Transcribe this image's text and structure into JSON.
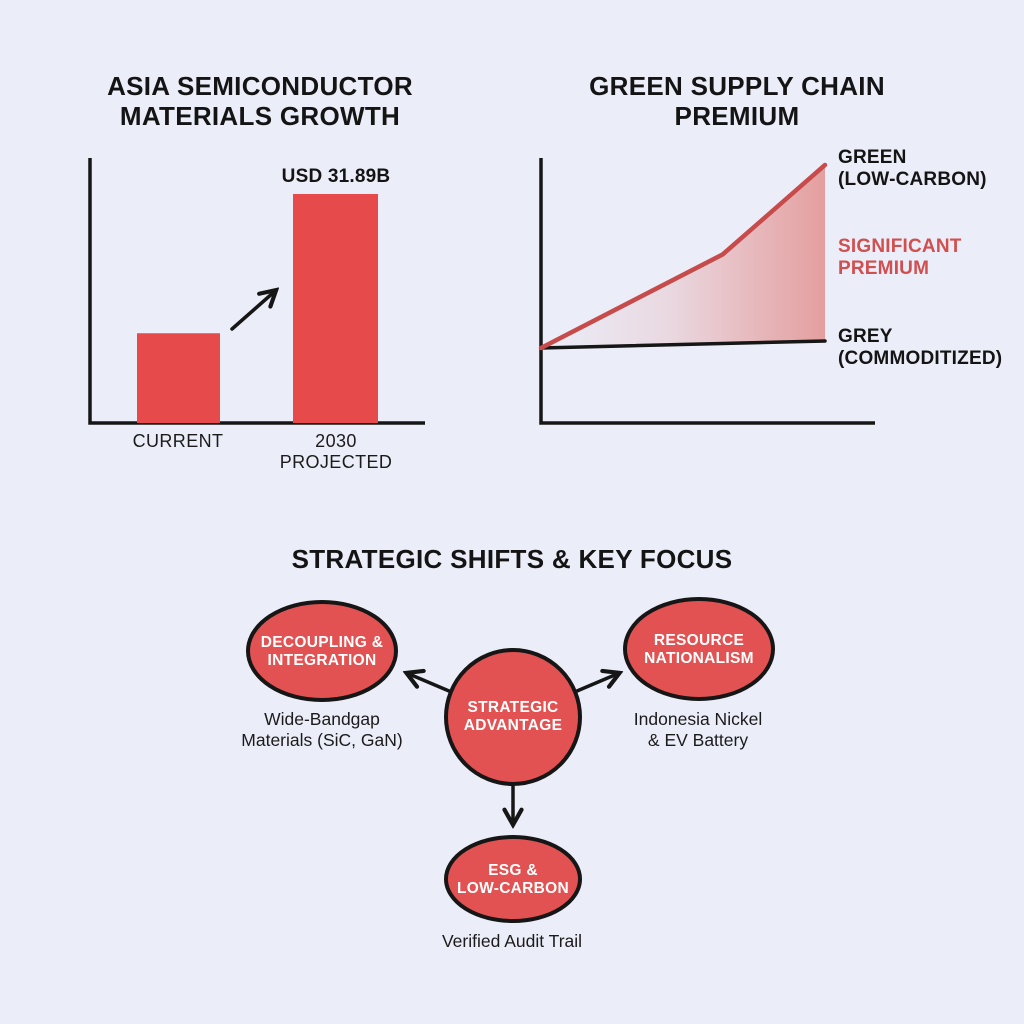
{
  "colors": {
    "background": "#ebeef9",
    "ink": "#161616",
    "red_shape": "#e25252",
    "red_bar": "#e74a4a",
    "red_line": "#c74b4b",
    "red_text": "#d04f4f",
    "node_text": "#ffffff"
  },
  "chart_data": [
    {
      "type": "bar",
      "title": "ASIA SEMICONDUCTOR\nMATERIALS GROWTH",
      "categories": [
        "CURRENT",
        "2030\nPROJECTED"
      ],
      "values": [
        12.5,
        31.89
      ],
      "value_unit": "USD billion",
      "data_labels": [
        "",
        "USD 31.89B"
      ],
      "bar_color": "#e74a4a",
      "ylim": [
        0,
        34
      ],
      "annotation": "up-right growth arrow between bars",
      "axes_labeled": false
    },
    {
      "type": "line",
      "title": "GREEN SUPPLY CHAIN\nPREMIUM",
      "units": "relative index (axes unlabeled, values estimated)",
      "series": [
        {
          "name": "GREEN\n(LOW-CARBON)",
          "color": "#c74b4b",
          "x": [
            0,
            0.64,
            1
          ],
          "values": [
            1.0,
            2.33,
            3.6
          ]
        },
        {
          "name": "GREY\n(COMMODITIZED)",
          "color": "#161616",
          "x": [
            0,
            1
          ],
          "values": [
            1.0,
            1.1
          ]
        }
      ],
      "annotation": {
        "text": "SIGNIFICANT\nPREMIUM",
        "color": "#d04f4f"
      },
      "fill_between": {
        "from": "GREY (COMMODITIZED)",
        "to": "GREEN (LOW-CARBON)",
        "style": "red gradient fading to the left"
      }
    }
  ],
  "diagram": {
    "title": "STRATEGIC SHIFTS & KEY FOCUS",
    "center_node": {
      "label": "STRATEGIC\nADVANTAGE"
    },
    "nodes": [
      {
        "label": "DECOUPLING &\nINTEGRATION",
        "sublabel": "Wide-Bandgap\nMaterials (SiC, GaN)"
      },
      {
        "label": "RESOURCE\nNATIONALISM",
        "sublabel": "Indonesia Nickel\n& EV Battery"
      },
      {
        "label": "ESG &\nLOW-CARBON",
        "sublabel": "Verified Audit Trail"
      }
    ]
  }
}
